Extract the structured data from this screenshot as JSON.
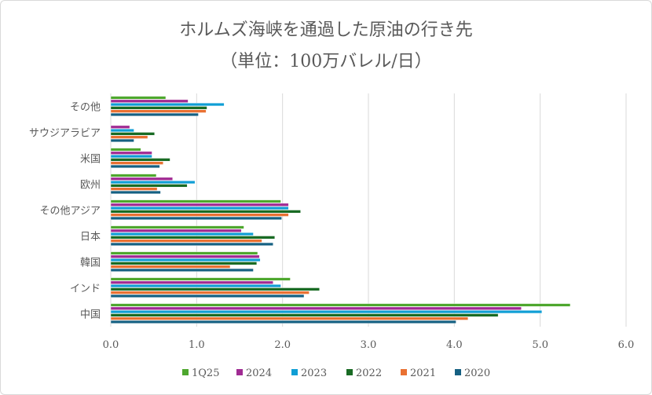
{
  "chart_data": {
    "type": "bar",
    "orientation": "horizontal",
    "title": "ホルムズ海峡を通過した原油の行き先",
    "subtitle": "（単位：100万バレル/日）",
    "categories": [
      "その他",
      "サウジアラビア",
      "米国",
      "欧州",
      "その他アジア",
      "日本",
      "韓国",
      "インド",
      "中国"
    ],
    "series": [
      {
        "name": "1Q25",
        "color": "#4ea72e",
        "values": [
          0.64,
          0,
          0.35,
          0.53,
          1.98,
          1.55,
          1.71,
          2.09,
          5.35
        ]
      },
      {
        "name": "2024",
        "color": "#a02b93",
        "values": [
          0.9,
          0.22,
          0.48,
          0.72,
          2.07,
          1.52,
          1.73,
          1.89,
          4.78
        ]
      },
      {
        "name": "2023",
        "color": "#0f9ed5",
        "values": [
          1.32,
          0.27,
          0.48,
          0.98,
          2.07,
          1.66,
          1.74,
          1.98,
          5.02
        ]
      },
      {
        "name": "2022",
        "color": "#196b24",
        "values": [
          1.12,
          0.51,
          0.69,
          0.89,
          2.21,
          1.91,
          1.7,
          2.43,
          4.51
        ]
      },
      {
        "name": "2021",
        "color": "#e97132",
        "values": [
          1.11,
          0.43,
          0.61,
          0.54,
          2.07,
          1.76,
          1.39,
          2.31,
          4.16
        ]
      },
      {
        "name": "2020",
        "color": "#156082",
        "values": [
          1.02,
          0.27,
          0.57,
          0.58,
          1.99,
          1.89,
          1.66,
          2.25,
          4.02
        ]
      }
    ],
    "xlim": [
      0,
      6
    ],
    "xticks": [
      "0.0",
      "1.0",
      "2.0",
      "3.0",
      "4.0",
      "5.0",
      "6.0"
    ],
    "grid": true,
    "legend": "bottom"
  }
}
